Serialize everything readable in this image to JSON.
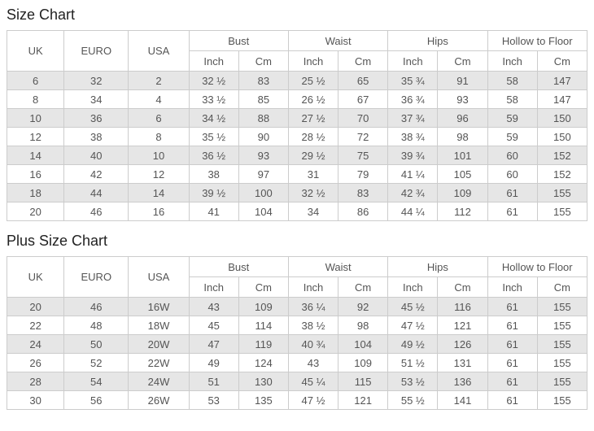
{
  "colors": {
    "zebra": "#e6e6e6",
    "border": "#cccccc",
    "text": "#555555",
    "title": "#222222",
    "background": "#ffffff"
  },
  "headers": {
    "uk": "UK",
    "euro": "EURO",
    "usa": "USA",
    "groups": [
      "Bust",
      "Waist",
      "Hips",
      "Hollow to Floor"
    ],
    "units": {
      "inch": "Inch",
      "cm": "Cm"
    }
  },
  "sections": [
    {
      "title": "Size Chart",
      "rows": [
        [
          "6",
          "32",
          "2",
          "32 ½",
          "83",
          "25 ½",
          "65",
          "35 ¾",
          "91",
          "58",
          "147"
        ],
        [
          "8",
          "34",
          "4",
          "33 ½",
          "85",
          "26 ½",
          "67",
          "36 ¾",
          "93",
          "58",
          "147"
        ],
        [
          "10",
          "36",
          "6",
          "34 ½",
          "88",
          "27 ½",
          "70",
          "37 ¾",
          "96",
          "59",
          "150"
        ],
        [
          "12",
          "38",
          "8",
          "35 ½",
          "90",
          "28 ½",
          "72",
          "38 ¾",
          "98",
          "59",
          "150"
        ],
        [
          "14",
          "40",
          "10",
          "36 ½",
          "93",
          "29 ½",
          "75",
          "39 ¾",
          "101",
          "60",
          "152"
        ],
        [
          "16",
          "42",
          "12",
          "38",
          "97",
          "31",
          "79",
          "41 ¼",
          "105",
          "60",
          "152"
        ],
        [
          "18",
          "44",
          "14",
          "39 ½",
          "100",
          "32 ½",
          "83",
          "42 ¾",
          "109",
          "61",
          "155"
        ],
        [
          "20",
          "46",
          "16",
          "41",
          "104",
          "34",
          "86",
          "44 ¼",
          "112",
          "61",
          "155"
        ]
      ]
    },
    {
      "title": "Plus Size Chart",
      "rows": [
        [
          "20",
          "46",
          "16W",
          "43",
          "109",
          "36 ¼",
          "92",
          "45 ½",
          "116",
          "61",
          "155"
        ],
        [
          "22",
          "48",
          "18W",
          "45",
          "114",
          "38 ½",
          "98",
          "47 ½",
          "121",
          "61",
          "155"
        ],
        [
          "24",
          "50",
          "20W",
          "47",
          "119",
          "40 ¾",
          "104",
          "49 ½",
          "126",
          "61",
          "155"
        ],
        [
          "26",
          "52",
          "22W",
          "49",
          "124",
          "43",
          "109",
          "51 ½",
          "131",
          "61",
          "155"
        ],
        [
          "28",
          "54",
          "24W",
          "51",
          "130",
          "45 ¼",
          "115",
          "53 ½",
          "136",
          "61",
          "155"
        ],
        [
          "30",
          "56",
          "26W",
          "53",
          "135",
          "47 ½",
          "121",
          "55 ½",
          "141",
          "61",
          "155"
        ]
      ]
    }
  ]
}
